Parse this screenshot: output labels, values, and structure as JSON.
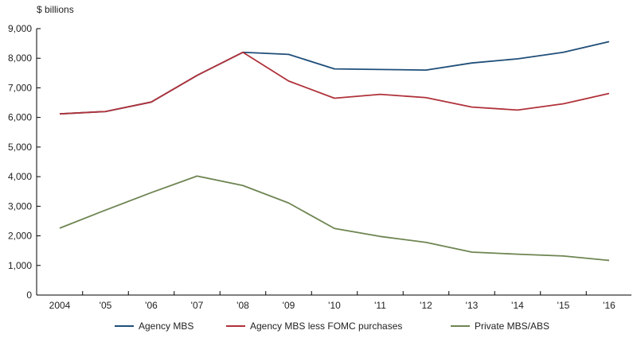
{
  "chart_data": {
    "type": "line",
    "title": "",
    "ylabel": "$ billions",
    "xlabel": "",
    "ylim": [
      0,
      9000
    ],
    "yticks": [
      0,
      1000,
      2000,
      3000,
      4000,
      5000,
      6000,
      7000,
      8000,
      9000
    ],
    "ytick_labels": [
      "0",
      "1,000",
      "2,000",
      "3,000",
      "4,000",
      "5,000",
      "6,000",
      "7,000",
      "8,000",
      "9,000"
    ],
    "categories": [
      "2004",
      "'05",
      "'06",
      "'07",
      "'08",
      "'09",
      "'10",
      "'11",
      "'12",
      "'13",
      "'14",
      "'15",
      "'16"
    ],
    "grid": false,
    "legend_position": "bottom",
    "series": [
      {
        "name": "Agency MBS",
        "color": "#1f4e79",
        "values": [
          6120,
          6200,
          6520,
          7420,
          8200,
          8130,
          7640,
          7620,
          7600,
          7840,
          7980,
          8200,
          8560
        ]
      },
      {
        "name": "Agency MBS less FOMC purchases",
        "color": "#b0323a",
        "values": [
          6120,
          6200,
          6520,
          7420,
          8200,
          7230,
          6650,
          6780,
          6670,
          6350,
          6250,
          6460,
          6810
        ]
      },
      {
        "name": "Private MBS/ABS",
        "color": "#6e8552",
        "values": [
          2260,
          2870,
          3460,
          4020,
          3700,
          3110,
          2250,
          1980,
          1780,
          1450,
          1380,
          1320,
          1170
        ]
      }
    ]
  }
}
